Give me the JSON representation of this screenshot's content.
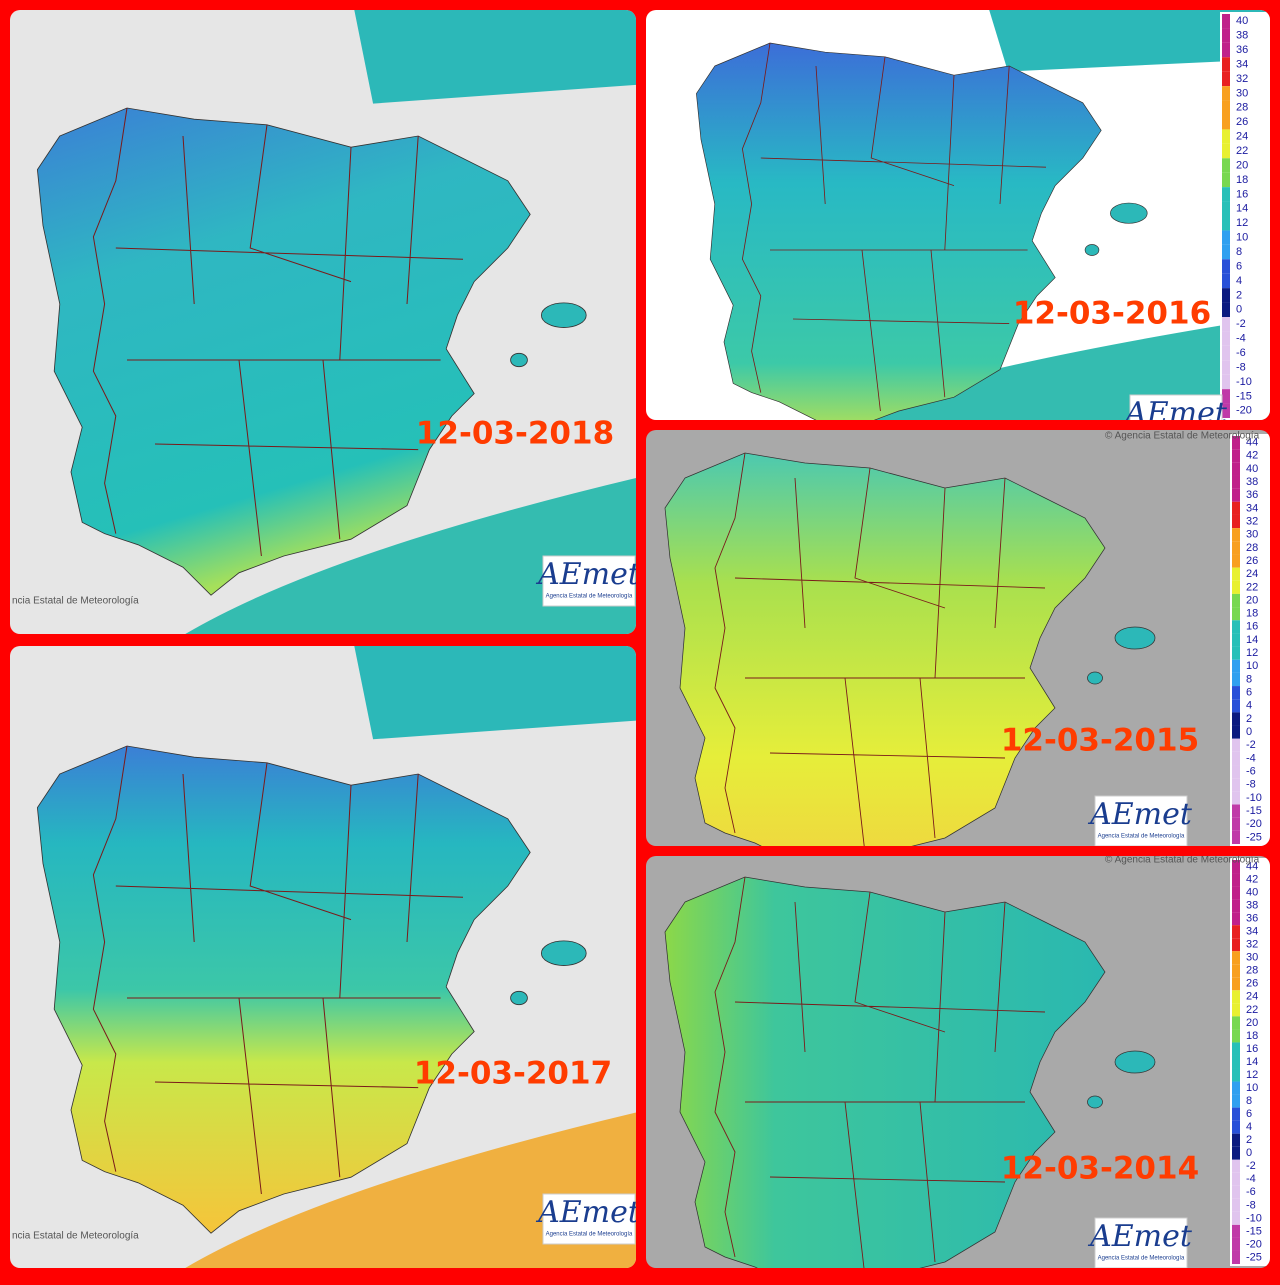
{
  "panels": [
    {
      "date": "12-03-2018",
      "credit": "ncia Estatal de Meteorología",
      "logo": "AEmet",
      "logo_caption": "Agencia Estatal de Meteorología"
    },
    {
      "date": "12-03-2016",
      "logo": "AEmet",
      "legend": [
        "40",
        "38",
        "36",
        "34",
        "32",
        "30",
        "28",
        "26",
        "24",
        "22",
        "20",
        "18",
        "16",
        "14",
        "12",
        "10",
        "8",
        "6",
        "4",
        "2",
        "0",
        "-2",
        "-4",
        "-6",
        "-8",
        "-10",
        "-15",
        "-20"
      ]
    },
    {
      "date": "12-03-2015",
      "credit": "© Agencia Estatal de Meteorología",
      "logo": "AEmet",
      "logo_caption": "Agencia Estatal de Meteorología",
      "legend": [
        "44",
        "42",
        "40",
        "38",
        "36",
        "34",
        "32",
        "30",
        "28",
        "26",
        "24",
        "22",
        "20",
        "18",
        "16",
        "14",
        "12",
        "10",
        "8",
        "6",
        "4",
        "2",
        "0",
        "-2",
        "-4",
        "-6",
        "-8",
        "-10",
        "-15",
        "-20",
        "-25"
      ]
    },
    {
      "date": "12-03-2017",
      "credit": "ncia Estatal de Meteorología",
      "logo": "AEmet",
      "logo_caption": "Agencia Estatal de Meteorología"
    },
    {
      "date": "12-03-2014",
      "credit": "© Agencia Estatal de Meteorología",
      "logo": "AEmet",
      "logo_caption": "Agencia Estatal de Meteorología",
      "legend": [
        "44",
        "42",
        "40",
        "38",
        "36",
        "34",
        "32",
        "30",
        "28",
        "26",
        "24",
        "22",
        "20",
        "18",
        "16",
        "14",
        "12",
        "10",
        "8",
        "6",
        "4",
        "2",
        "0",
        "-2",
        "-4",
        "-6",
        "-8",
        "-10",
        "-15",
        "-20",
        "-25"
      ]
    }
  ]
}
